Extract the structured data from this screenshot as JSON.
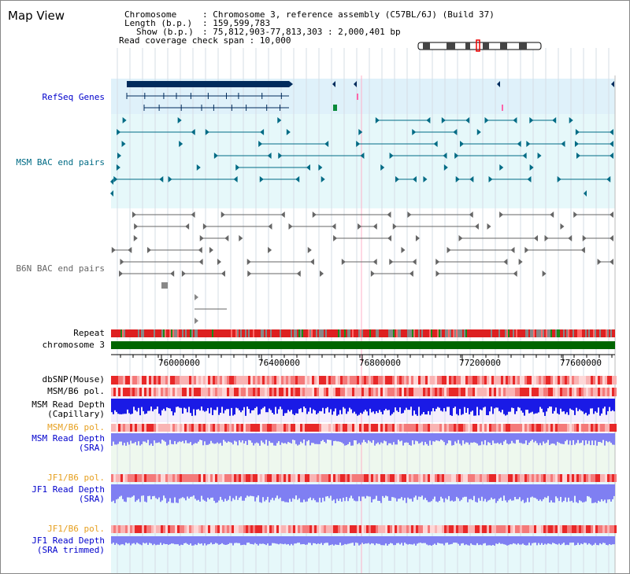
{
  "page": {
    "title": "Map View"
  },
  "info": {
    "chromosome_key": "Chromosome",
    "chromosome_val": ": Chromosome 3, reference assembly (C57BL/6J) (Build 37)",
    "length_key": "Length (b.p.)",
    "length_val": ": 159,599,783",
    "show_key": "Show (b.p.)",
    "show_val": ": 75,812,903-77,813,303 : 2,000,401 bp",
    "read_coverage": "Read coverage check span : 10,000"
  },
  "tracks": {
    "refseq": "RefSeq Genes",
    "msm_bac": "MSM BAC end pairs",
    "b6n_bac": "B6N BAC end pairs",
    "repeat": "Repeat",
    "chromosome": "chromosome 3",
    "dbsnp": "dbSNP(Mouse)",
    "msm_b6_pol_1": "MSM/B6 pol.",
    "msm_read_depth_cap_1": "MSM Read Depth",
    "msm_read_depth_cap_2": "(Capillary)",
    "msm_b6_pol_2": "MSM/B6 pol.",
    "msm_read_depth_sra_1": "MSM Read Depth",
    "msm_read_depth_sra_2": "(SRA)",
    "jf1_b6_pol_1": "JF1/B6 pol.",
    "jf1_read_depth_sra_1": "JF1 Read Depth",
    "jf1_read_depth_sra_2": "(SRA)",
    "jf1_b6_pol_2": "JF1/B6 pol.",
    "jf1_read_depth_trim_1": "JF1 Read Depth",
    "jf1_read_depth_trim_2": "(SRA trimmed)"
  },
  "axis": {
    "ticks": [
      "76000000",
      "76400000",
      "76800000",
      "77200000",
      "77600000"
    ]
  },
  "colors": {
    "refseq_bg": "#dff1fa",
    "bac_bg": "#e6f8fa",
    "gene_dark": "#002b5c",
    "teal": "#006b85",
    "chrom_green": "#006600",
    "depth_blue": "#1a1ae6",
    "depth_light": "#7f7ff2",
    "pol_red": "#e83030",
    "highlight_line": "#ffb0c8"
  }
}
